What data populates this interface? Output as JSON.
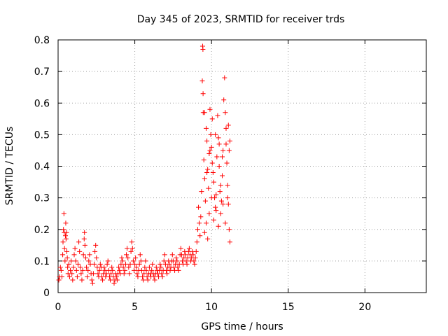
{
  "chart_data": {
    "type": "scatter",
    "title": "Day 345 of 2023, SRMTID for receiver trds",
    "xlabel": "GPS time / hours",
    "ylabel": "SRMTID / TECUs",
    "xlim": [
      0,
      24
    ],
    "ylim": [
      0,
      0.8
    ],
    "x_ticks": [
      0,
      5,
      10,
      15,
      20
    ],
    "x_tick_labels": [
      "0",
      "5",
      "10",
      "15",
      "20"
    ],
    "y_ticks": [
      0,
      0.1,
      0.2,
      0.3,
      0.4,
      0.5,
      0.6,
      0.7,
      0.8
    ],
    "y_tick_labels": [
      "0",
      "0.1",
      "0.2",
      "0.3",
      "0.4",
      "0.5",
      "0.6",
      "0.7",
      "0.8"
    ],
    "grid": true,
    "marker": "+",
    "marker_color": "#ff0000",
    "series": [
      {
        "name": "SRMTID",
        "points": [
          [
            0.05,
            0.04
          ],
          [
            0.1,
            0.05
          ],
          [
            0.15,
            0.08
          ],
          [
            0.2,
            0.07
          ],
          [
            0.25,
            0.05
          ],
          [
            0.3,
            0.12
          ],
          [
            0.32,
            0.16
          ],
          [
            0.35,
            0.2
          ],
          [
            0.38,
            0.25
          ],
          [
            0.4,
            0.19
          ],
          [
            0.42,
            0.14
          ],
          [
            0.45,
            0.1
          ],
          [
            0.48,
            0.18
          ],
          [
            0.5,
            0.22
          ],
          [
            0.52,
            0.17
          ],
          [
            0.55,
            0.19
          ],
          [
            0.57,
            0.13
          ],
          [
            0.6,
            0.11
          ],
          [
            0.62,
            0.08
          ],
          [
            0.65,
            0.06
          ],
          [
            0.7,
            0.09
          ],
          [
            0.75,
            0.05
          ],
          [
            0.8,
            0.07
          ],
          [
            0.85,
            0.1
          ],
          [
            0.9,
            0.06
          ],
          [
            0.95,
            0.04
          ],
          [
            1.0,
            0.08
          ],
          [
            1.05,
            0.12
          ],
          [
            1.1,
            0.14
          ],
          [
            1.15,
            0.1
          ],
          [
            1.2,
            0.07
          ],
          [
            1.25,
            0.05
          ],
          [
            1.3,
            0.09
          ],
          [
            1.35,
            0.16
          ],
          [
            1.4,
            0.13
          ],
          [
            1.45,
            0.08
          ],
          [
            1.5,
            0.06
          ],
          [
            1.55,
            0.04
          ],
          [
            1.6,
            0.07
          ],
          [
            1.65,
            0.12
          ],
          [
            1.7,
            0.17
          ],
          [
            1.72,
            0.19
          ],
          [
            1.75,
            0.15
          ],
          [
            1.8,
            0.11
          ],
          [
            1.85,
            0.08
          ],
          [
            1.9,
            0.05
          ],
          [
            1.95,
            0.07
          ],
          [
            2.0,
            0.1
          ],
          [
            2.05,
            0.12
          ],
          [
            2.1,
            0.09
          ],
          [
            2.15,
            0.06
          ],
          [
            2.2,
            0.04
          ],
          [
            2.25,
            0.03
          ],
          [
            2.3,
            0.06
          ],
          [
            2.35,
            0.09
          ],
          [
            2.4,
            0.13
          ],
          [
            2.45,
            0.15
          ],
          [
            2.5,
            0.11
          ],
          [
            2.55,
            0.08
          ],
          [
            2.6,
            0.06
          ],
          [
            2.65,
            0.05
          ],
          [
            2.7,
            0.07
          ],
          [
            2.75,
            0.09
          ],
          [
            2.8,
            0.08
          ],
          [
            2.85,
            0.05
          ],
          [
            2.9,
            0.04
          ],
          [
            2.95,
            0.06
          ],
          [
            3.0,
            0.08
          ],
          [
            3.05,
            0.07
          ],
          [
            3.1,
            0.05
          ],
          [
            3.15,
            0.06
          ],
          [
            3.2,
            0.09
          ],
          [
            3.25,
            0.1
          ],
          [
            3.3,
            0.07
          ],
          [
            3.35,
            0.05
          ],
          [
            3.4,
            0.04
          ],
          [
            3.45,
            0.06
          ],
          [
            3.5,
            0.08
          ],
          [
            3.55,
            0.07
          ],
          [
            3.6,
            0.05
          ],
          [
            3.65,
            0.03
          ],
          [
            3.7,
            0.04
          ],
          [
            3.75,
            0.06
          ],
          [
            3.8,
            0.05
          ],
          [
            3.85,
            0.04
          ],
          [
            3.9,
            0.06
          ],
          [
            3.95,
            0.08
          ],
          [
            4.0,
            0.07
          ],
          [
            4.05,
            0.06
          ],
          [
            4.1,
            0.09
          ],
          [
            4.15,
            0.11
          ],
          [
            4.2,
            0.1
          ],
          [
            4.25,
            0.08
          ],
          [
            4.3,
            0.06
          ],
          [
            4.35,
            0.07
          ],
          [
            4.4,
            0.09
          ],
          [
            4.45,
            0.12
          ],
          [
            4.5,
            0.14
          ],
          [
            4.55,
            0.11
          ],
          [
            4.6,
            0.08
          ],
          [
            4.65,
            0.06
          ],
          [
            4.7,
            0.09
          ],
          [
            4.75,
            0.13
          ],
          [
            4.8,
            0.16
          ],
          [
            4.85,
            0.14
          ],
          [
            4.9,
            0.1
          ],
          [
            4.95,
            0.07
          ],
          [
            5.0,
            0.09
          ],
          [
            5.05,
            0.11
          ],
          [
            5.1,
            0.08
          ],
          [
            5.15,
            0.06
          ],
          [
            5.2,
            0.05
          ],
          [
            5.25,
            0.07
          ],
          [
            5.3,
            0.09
          ],
          [
            5.35,
            0.12
          ],
          [
            5.4,
            0.1
          ],
          [
            5.45,
            0.07
          ],
          [
            5.5,
            0.05
          ],
          [
            5.55,
            0.04
          ],
          [
            5.6,
            0.06
          ],
          [
            5.65,
            0.08
          ],
          [
            5.7,
            0.1
          ],
          [
            5.75,
            0.07
          ],
          [
            5.8,
            0.05
          ],
          [
            5.85,
            0.04
          ],
          [
            5.9,
            0.06
          ],
          [
            5.95,
            0.08
          ],
          [
            6.0,
            0.06
          ],
          [
            6.05,
            0.05
          ],
          [
            6.1,
            0.07
          ],
          [
            6.15,
            0.09
          ],
          [
            6.2,
            0.06
          ],
          [
            6.25,
            0.05
          ],
          [
            6.3,
            0.04
          ],
          [
            6.35,
            0.06
          ],
          [
            6.4,
            0.08
          ],
          [
            6.45,
            0.07
          ],
          [
            6.5,
            0.06
          ],
          [
            6.55,
            0.05
          ],
          [
            6.6,
            0.07
          ],
          [
            6.65,
            0.09
          ],
          [
            6.7,
            0.08
          ],
          [
            6.75,
            0.06
          ],
          [
            6.8,
            0.05
          ],
          [
            6.85,
            0.07
          ],
          [
            6.9,
            0.1
          ],
          [
            6.95,
            0.12
          ],
          [
            7.0,
            0.09
          ],
          [
            7.05,
            0.07
          ],
          [
            7.1,
            0.06
          ],
          [
            7.15,
            0.08
          ],
          [
            7.2,
            0.1
          ],
          [
            7.25,
            0.09
          ],
          [
            7.3,
            0.07
          ],
          [
            7.35,
            0.08
          ],
          [
            7.4,
            0.1
          ],
          [
            7.45,
            0.12
          ],
          [
            7.5,
            0.1
          ],
          [
            7.55,
            0.08
          ],
          [
            7.6,
            0.07
          ],
          [
            7.65,
            0.09
          ],
          [
            7.7,
            0.11
          ],
          [
            7.75,
            0.1
          ],
          [
            7.8,
            0.08
          ],
          [
            7.85,
            0.07
          ],
          [
            7.9,
            0.09
          ],
          [
            7.95,
            0.12
          ],
          [
            8.0,
            0.14
          ],
          [
            8.05,
            0.12
          ],
          [
            8.1,
            0.1
          ],
          [
            8.15,
            0.09
          ],
          [
            8.2,
            0.11
          ],
          [
            8.25,
            0.13
          ],
          [
            8.3,
            0.12
          ],
          [
            8.35,
            0.1
          ],
          [
            8.4,
            0.09
          ],
          [
            8.45,
            0.11
          ],
          [
            8.5,
            0.13
          ],
          [
            8.55,
            0.14
          ],
          [
            8.6,
            0.12
          ],
          [
            8.65,
            0.1
          ],
          [
            8.7,
            0.11
          ],
          [
            8.75,
            0.13
          ],
          [
            8.8,
            0.12
          ],
          [
            8.85,
            0.1
          ],
          [
            8.9,
            0.09
          ],
          [
            8.95,
            0.11
          ],
          [
            9.0,
            0.13
          ],
          [
            9.05,
            0.16
          ],
          [
            9.1,
            0.2
          ],
          [
            9.15,
            0.27
          ],
          [
            9.2,
            0.22
          ],
          [
            9.25,
            0.18
          ],
          [
            9.3,
            0.24
          ],
          [
            9.35,
            0.32
          ],
          [
            9.4,
            0.67
          ],
          [
            9.42,
            0.78
          ],
          [
            9.44,
            0.77
          ],
          [
            9.46,
            0.57
          ],
          [
            9.5,
            0.42
          ],
          [
            9.55,
            0.36
          ],
          [
            9.6,
            0.29
          ],
          [
            9.65,
            0.52
          ],
          [
            9.7,
            0.48
          ],
          [
            9.75,
            0.39
          ],
          [
            9.8,
            0.33
          ],
          [
            9.85,
            0.44
          ],
          [
            9.9,
            0.58
          ],
          [
            9.95,
            0.5
          ],
          [
            10.0,
            0.46
          ],
          [
            10.05,
            0.41
          ],
          [
            10.1,
            0.38
          ],
          [
            10.15,
            0.35
          ],
          [
            10.2,
            0.3
          ],
          [
            10.25,
            0.27
          ],
          [
            10.3,
            0.31
          ],
          [
            10.35,
            0.43
          ],
          [
            10.4,
            0.56
          ],
          [
            10.45,
            0.49
          ],
          [
            10.5,
            0.4
          ],
          [
            10.55,
            0.32
          ],
          [
            10.6,
            0.25
          ],
          [
            10.65,
            0.29
          ],
          [
            10.7,
            0.37
          ],
          [
            10.75,
            0.45
          ],
          [
            10.8,
            0.61
          ],
          [
            10.85,
            0.68
          ],
          [
            10.9,
            0.57
          ],
          [
            10.95,
            0.47
          ],
          [
            11.0,
            0.41
          ],
          [
            11.05,
            0.34
          ],
          [
            11.1,
            0.28
          ],
          [
            11.15,
            0.2
          ],
          [
            11.2,
            0.16
          ],
          [
            9.55,
            0.19
          ],
          [
            9.65,
            0.22
          ],
          [
            9.75,
            0.17
          ],
          [
            9.85,
            0.25
          ],
          [
            10.0,
            0.3
          ],
          [
            10.15,
            0.23
          ],
          [
            10.3,
            0.26
          ],
          [
            10.45,
            0.21
          ],
          [
            10.6,
            0.34
          ],
          [
            10.75,
            0.28
          ],
          [
            10.9,
            0.22
          ],
          [
            11.05,
            0.3
          ],
          [
            11.15,
            0.45
          ],
          [
            11.2,
            0.48
          ],
          [
            11.1,
            0.53
          ],
          [
            10.95,
            0.52
          ],
          [
            10.7,
            0.43
          ],
          [
            10.5,
            0.47
          ],
          [
            10.25,
            0.5
          ],
          [
            10.05,
            0.55
          ],
          [
            9.9,
            0.45
          ],
          [
            9.7,
            0.38
          ],
          [
            9.55,
            0.57
          ],
          [
            9.45,
            0.63
          ]
        ]
      }
    ]
  }
}
